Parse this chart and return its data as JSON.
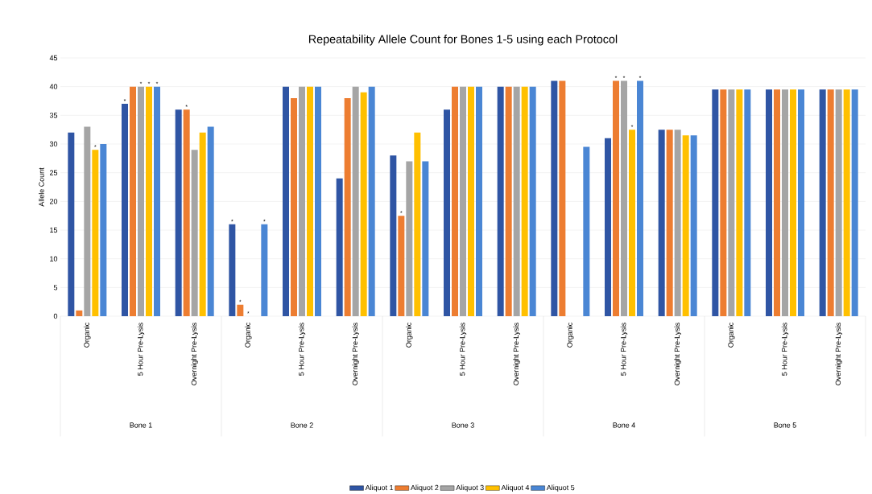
{
  "chart_data": {
    "type": "bar",
    "title": "Repeatability Allele Count for Bones 1-5 using each Protocol",
    "ylabel": "Allele Count",
    "categories": [
      "Organic",
      "5 Hour Pre-Lysis",
      "Overnight Pre-Lysis",
      "Organic",
      "5 Hour Pre-Lysis",
      "Overnight Pre-Lysis",
      "Organic",
      "5 Hour Pre-Lysis",
      "Overnight Pre-Lysis",
      "Organic",
      "5 Hour Pre-Lysis",
      "Overnight Pre-Lysis",
      "Organic",
      "5 Hour Pre-Lysis",
      "Overnight Pre-Lysis"
    ],
    "annotations": [
      "Bone 1",
      "Bone 2",
      "Bone 3",
      "Bone 4",
      "Bone 5"
    ],
    "series": [
      {
        "name": "Aliquot 1",
        "color": "#2f55a4",
        "values": [
          32,
          37,
          36,
          16,
          40,
          24,
          28,
          36,
          40,
          41,
          31,
          32.5,
          39.5,
          39.5,
          39.5
        ],
        "value_labels": [
          null,
          "*",
          null,
          "*",
          null,
          null,
          null,
          null,
          null,
          null,
          null,
          null,
          null,
          null,
          null
        ]
      },
      {
        "name": "Aliquot 2",
        "color": "#ed7d31",
        "values": [
          1,
          40,
          36,
          2,
          38,
          38,
          17.5,
          40,
          40,
          41,
          41,
          32.5,
          39.5,
          39.5,
          39.5
        ],
        "value_labels": [
          null,
          null,
          "*",
          "*",
          null,
          null,
          "*",
          null,
          null,
          null,
          "*",
          null,
          null,
          null,
          null
        ]
      },
      {
        "name": "Aliquot 3",
        "color": "#a5a5a5",
        "values": [
          33,
          40,
          29,
          0,
          40,
          40,
          27,
          40,
          40,
          null,
          41,
          32.5,
          39.5,
          39.5,
          39.5
        ],
        "value_labels": [
          null,
          "*",
          null,
          "*",
          null,
          null,
          null,
          null,
          null,
          null,
          "*",
          null,
          null,
          null,
          null
        ]
      },
      {
        "name": "Aliquot 4",
        "color": "#ffc000",
        "values": [
          29,
          40,
          32,
          null,
          40,
          39,
          32,
          40,
          40,
          null,
          32.5,
          31.5,
          39.5,
          39.5,
          39.5
        ],
        "value_labels": [
          "*",
          "*",
          null,
          null,
          null,
          null,
          null,
          null,
          null,
          null,
          "*",
          null,
          null,
          null,
          null
        ]
      },
      {
        "name": "Aliquot 5",
        "color": "#4a86d4",
        "values": [
          30,
          40,
          33,
          16,
          40,
          40,
          27,
          40,
          40,
          29.5,
          41,
          31.5,
          39.5,
          39.5,
          39.5
        ],
        "value_labels": [
          null,
          "*",
          null,
          "*",
          null,
          null,
          null,
          null,
          null,
          null,
          "*",
          null,
          null,
          null,
          null
        ]
      }
    ],
    "ylim": [
      0,
      45
    ],
    "yticks": [
      0,
      5,
      10,
      15,
      20,
      25,
      30,
      35,
      40,
      45
    ],
    "grid": "y",
    "legend": "bottom"
  }
}
